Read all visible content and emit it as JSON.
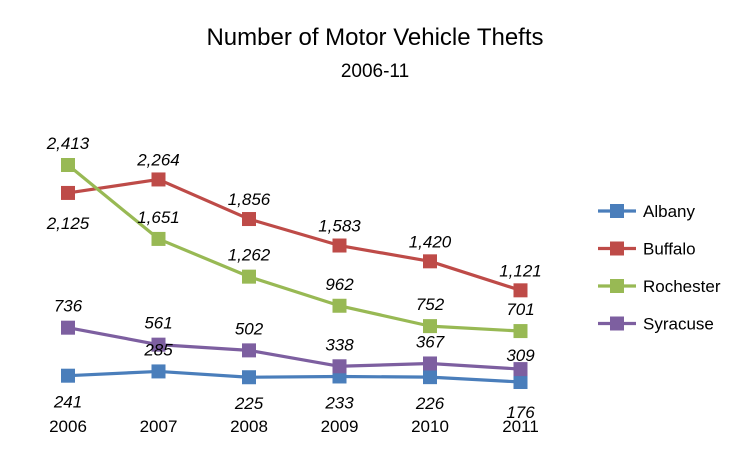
{
  "chart_data": {
    "type": "line",
    "title": "Number of Motor Vehicle Thefts",
    "subtitle": "2006-11",
    "xlabel": "",
    "ylabel": "",
    "categories": [
      "2006",
      "2007",
      "2008",
      "2009",
      "2010",
      "2011"
    ],
    "ylim": [
      0,
      2600
    ],
    "grid": false,
    "legend_position": "right",
    "series": [
      {
        "name": "Albany",
        "color": "#4a7ebb",
        "values": [
          241,
          285,
          225,
          233,
          226,
          176
        ],
        "labels": [
          "241",
          "285",
          "225",
          "233",
          "226",
          "176"
        ]
      },
      {
        "name": "Buffalo",
        "color": "#be4b48",
        "values": [
          2125,
          2264,
          1856,
          1583,
          1420,
          1121
        ],
        "labels": [
          "2,125",
          "2,264",
          "1,856",
          "1,583",
          "1,420",
          "1,121"
        ]
      },
      {
        "name": "Rochester",
        "color": "#98b954",
        "values": [
          2413,
          1651,
          1262,
          962,
          752,
          701
        ],
        "labels": [
          "2,413",
          "1,651",
          "1,262",
          "962",
          "752",
          "701"
        ]
      },
      {
        "name": "Syracuse",
        "color": "#7d5fa0",
        "values": [
          736,
          561,
          502,
          338,
          367,
          309
        ],
        "labels": [
          "736",
          "561",
          "502",
          "338",
          "367",
          "309"
        ]
      }
    ]
  }
}
